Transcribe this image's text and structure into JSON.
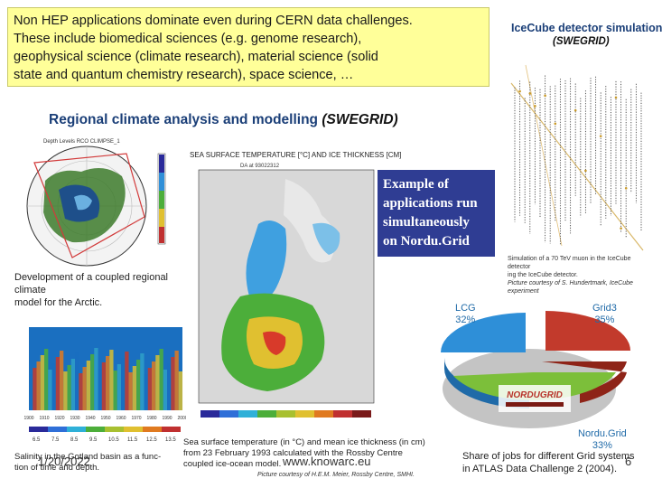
{
  "intro": {
    "lines": [
      "Non HEP applications dominate even during CERN data challenges.",
      "These include biomedical sciences (e.g. genome research),",
      "geophysical science (climate research),  material science (solid",
      "state and quantum chemistry research),  space science, …"
    ]
  },
  "icecube": {
    "title": "IceCube detector simulation",
    "subtitle": "(SWEGRID)",
    "caption_lines": [
      "Simulation of a 70 TeV muon in the IceCube detector",
      "ing the IceCube detector.",
      "Picture courtesy of S. Hundertmark, IceCube experiment"
    ]
  },
  "regional": {
    "title": "Regional climate analysis and modelling",
    "title_suffix": "(SWEGRID)",
    "arctic_caption_lines": [
      "Development  of a coupled regional climate",
      "model for the Arctic."
    ],
    "arctic_map_label": "Depth Levels RCO CLIMPSE_1",
    "salinity_caption_lines": [
      "Salinity in the Gotland basin as a func-",
      "tion of time and depth."
    ],
    "salinity_years": [
      "1900",
      "1910",
      "1920",
      "1930",
      "1940",
      "1950",
      "1960",
      "1970",
      "1980",
      "1990",
      "2000"
    ],
    "salinity_scale": [
      "6.5",
      "7.5",
      "8.5",
      "9.5",
      "10.5",
      "11.5",
      "12.5",
      "13.5"
    ],
    "sst_title": "SEA SURFACE TEMPERATURE [°C] AND ICE THICKNESS [CM]",
    "sst_date": "DA at 93022312",
    "sst_caption_lines": [
      "Sea surface temperature (in °C) and mean ice thickness (in cm)",
      "from 23 February 1993 calculated with the Rossby Centre",
      "coupled ice-ocean model."
    ],
    "sst_credit": "Picture courtesy of H.E.M. Meier, Rossby Centre, SMHI."
  },
  "example_box": {
    "lines": [
      "Example of",
      "applications run",
      "simultaneously",
      "on Nordu.Grid"
    ]
  },
  "pie": {
    "labels": [
      {
        "name": "LCG",
        "value": "32%"
      },
      {
        "name": "Grid3",
        "value": "35%"
      },
      {
        "name": "Nordu.Grid",
        "value": "33%"
      }
    ],
    "logo_text": "NORDUGRID",
    "caption_lines": [
      "Share of jobs for different Grid systems",
      "in ATLAS Data Challenge 2 (2004)."
    ],
    "colors": {
      "lcg": "#2e8fd8",
      "grid3": "#c23a2c",
      "nordugrid": "#7cbf3a"
    }
  },
  "footer": {
    "date": "1/20/2022",
    "url": "www.knowarc.eu",
    "page": "6"
  }
}
